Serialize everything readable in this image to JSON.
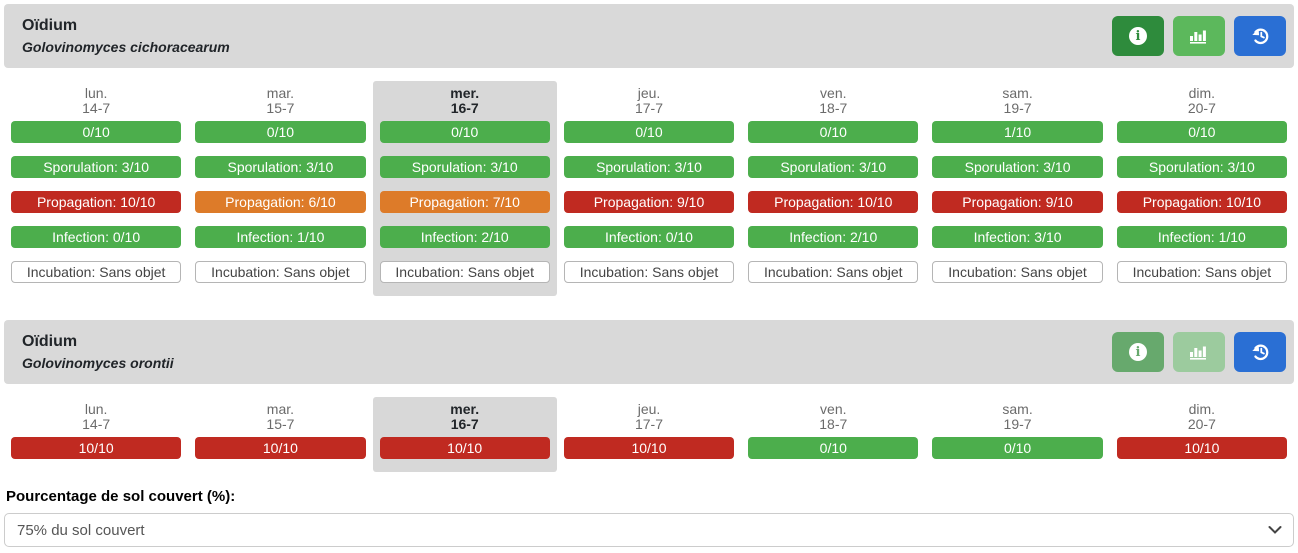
{
  "colors": {
    "badge-green": "#4cae4c",
    "badge-orange": "#dd7b29",
    "badge-red": "#c02a21",
    "header-bg": "#d9d9d9",
    "today-bg": "#d8d8d8",
    "btn-info-strong": "#2e8b3c",
    "btn-chart-strong": "#5cb85c",
    "btn-info-muted": "#67a96d",
    "btn-chart-muted": "#9ccb9e",
    "btn-history-blue": "#2a6fd4"
  },
  "sections": [
    {
      "title": "Oïdium",
      "subtitle": "Golovinomyces cichoracearum",
      "buttons": {
        "info_style": "btn-info-strong",
        "chart_style": "btn-chart-strong",
        "history_style": "btn-history"
      },
      "days": [
        {
          "label": "lun.",
          "date": "14-7",
          "today": false,
          "badges": [
            {
              "text": "0/10",
              "color": "green"
            },
            {
              "text": "Sporulation: 3/10",
              "color": "green"
            },
            {
              "text": "Propagation: 10/10",
              "color": "red"
            },
            {
              "text": "Infection: 0/10",
              "color": "green"
            },
            {
              "text": "Incubation: Sans objet",
              "color": "plain"
            }
          ]
        },
        {
          "label": "mar.",
          "date": "15-7",
          "today": false,
          "badges": [
            {
              "text": "0/10",
              "color": "green"
            },
            {
              "text": "Sporulation: 3/10",
              "color": "green"
            },
            {
              "text": "Propagation: 6/10",
              "color": "orange"
            },
            {
              "text": "Infection: 1/10",
              "color": "green"
            },
            {
              "text": "Incubation: Sans objet",
              "color": "plain"
            }
          ]
        },
        {
          "label": "mer.",
          "date": "16-7",
          "today": true,
          "badges": [
            {
              "text": "0/10",
              "color": "green"
            },
            {
              "text": "Sporulation: 3/10",
              "color": "green"
            },
            {
              "text": "Propagation: 7/10",
              "color": "orange"
            },
            {
              "text": "Infection: 2/10",
              "color": "green"
            },
            {
              "text": "Incubation: Sans objet",
              "color": "plain"
            }
          ]
        },
        {
          "label": "jeu.",
          "date": "17-7",
          "today": false,
          "badges": [
            {
              "text": "0/10",
              "color": "green"
            },
            {
              "text": "Sporulation: 3/10",
              "color": "green"
            },
            {
              "text": "Propagation: 9/10",
              "color": "red"
            },
            {
              "text": "Infection: 0/10",
              "color": "green"
            },
            {
              "text": "Incubation: Sans objet",
              "color": "plain"
            }
          ]
        },
        {
          "label": "ven.",
          "date": "18-7",
          "today": false,
          "badges": [
            {
              "text": "0/10",
              "color": "green"
            },
            {
              "text": "Sporulation: 3/10",
              "color": "green"
            },
            {
              "text": "Propagation: 10/10",
              "color": "red"
            },
            {
              "text": "Infection: 2/10",
              "color": "green"
            },
            {
              "text": "Incubation: Sans objet",
              "color": "plain"
            }
          ]
        },
        {
          "label": "sam.",
          "date": "19-7",
          "today": false,
          "badges": [
            {
              "text": "1/10",
              "color": "green"
            },
            {
              "text": "Sporulation: 3/10",
              "color": "green"
            },
            {
              "text": "Propagation: 9/10",
              "color": "red"
            },
            {
              "text": "Infection: 3/10",
              "color": "green"
            },
            {
              "text": "Incubation: Sans objet",
              "color": "plain"
            }
          ]
        },
        {
          "label": "dim.",
          "date": "20-7",
          "today": false,
          "badges": [
            {
              "text": "0/10",
              "color": "green"
            },
            {
              "text": "Sporulation: 3/10",
              "color": "green"
            },
            {
              "text": "Propagation: 10/10",
              "color": "red"
            },
            {
              "text": "Infection: 1/10",
              "color": "green"
            },
            {
              "text": "Incubation: Sans objet",
              "color": "plain"
            }
          ]
        }
      ]
    },
    {
      "title": "Oïdium",
      "subtitle": "Golovinomyces orontii",
      "buttons": {
        "info_style": "btn-info-muted",
        "chart_style": "btn-chart-muted",
        "history_style": "btn-history"
      },
      "days": [
        {
          "label": "lun.",
          "date": "14-7",
          "today": false,
          "badges": [
            {
              "text": "10/10",
              "color": "red"
            }
          ]
        },
        {
          "label": "mar.",
          "date": "15-7",
          "today": false,
          "badges": [
            {
              "text": "10/10",
              "color": "red"
            }
          ]
        },
        {
          "label": "mer.",
          "date": "16-7",
          "today": true,
          "badges": [
            {
              "text": "10/10",
              "color": "red"
            }
          ]
        },
        {
          "label": "jeu.",
          "date": "17-7",
          "today": false,
          "badges": [
            {
              "text": "10/10",
              "color": "red"
            }
          ]
        },
        {
          "label": "ven.",
          "date": "18-7",
          "today": false,
          "badges": [
            {
              "text": "0/10",
              "color": "green"
            }
          ]
        },
        {
          "label": "sam.",
          "date": "19-7",
          "today": false,
          "badges": [
            {
              "text": "0/10",
              "color": "green"
            }
          ]
        },
        {
          "label": "dim.",
          "date": "20-7",
          "today": false,
          "badges": [
            {
              "text": "10/10",
              "color": "red"
            }
          ]
        }
      ]
    }
  ],
  "ground_cover": {
    "label": "Pourcentage de sol couvert (%):",
    "selected": "75% du sol couvert"
  }
}
